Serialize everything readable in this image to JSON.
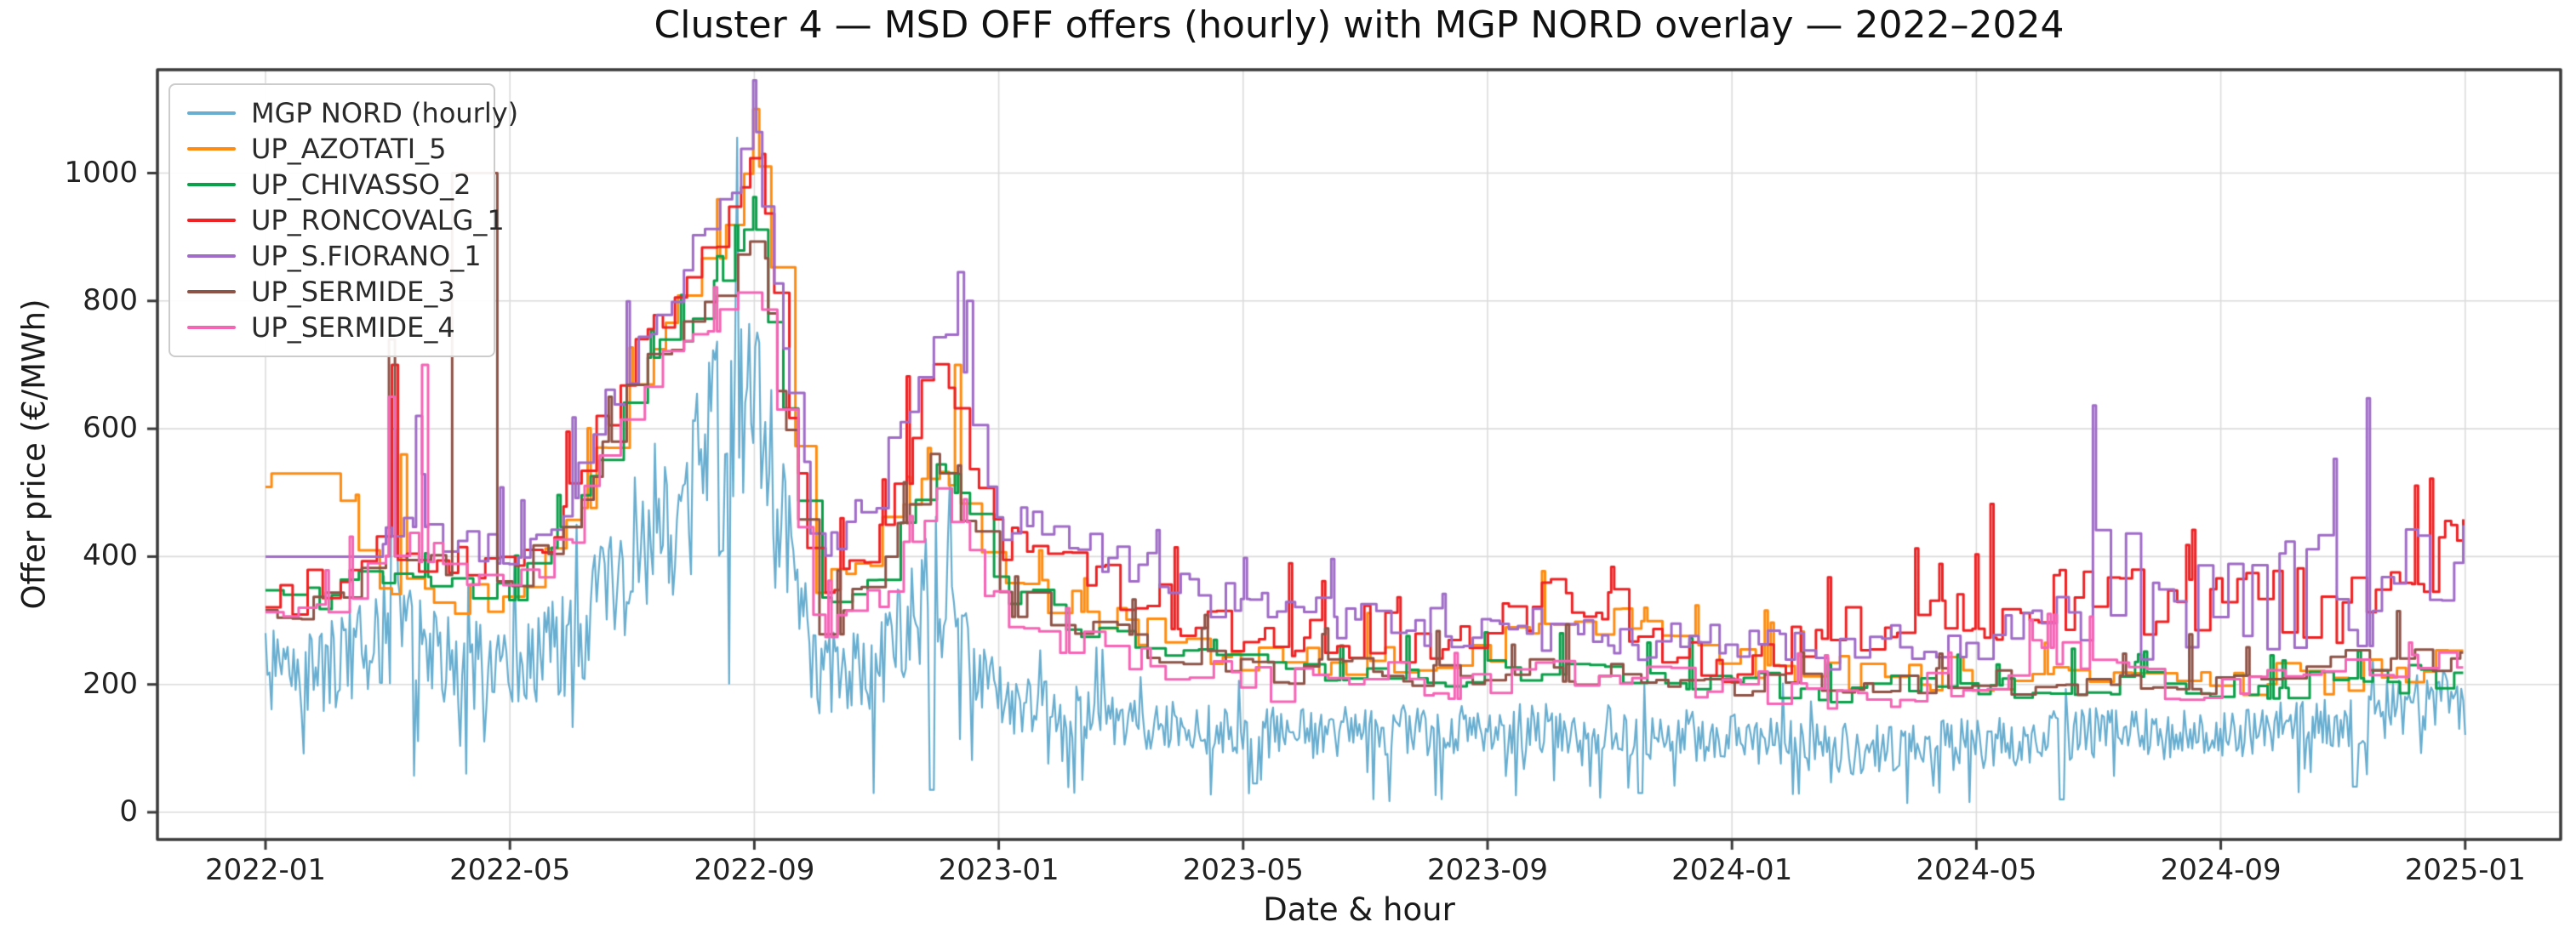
{
  "chart_data": {
    "type": "line",
    "title": "Cluster 4 — MSD OFF offers (hourly) with MGP NORD overlay — 2022–2024",
    "xlabel": "Date & hour",
    "ylabel": "Offer price (€/MWh)",
    "x_tick_labels": [
      "2022-01",
      "2022-05",
      "2022-09",
      "2023-01",
      "2023-05",
      "2023-09",
      "2024-01",
      "2024-05",
      "2024-09",
      "2025-01"
    ],
    "x_tick_months": [
      0,
      4,
      8,
      12,
      16,
      20,
      24,
      28,
      32,
      36
    ],
    "y_ticks": [
      0,
      200,
      400,
      600,
      800,
      1000
    ],
    "ylim": [
      -30,
      1170
    ],
    "grid": true,
    "legend_position": "upper left",
    "grid_color": "#dcdcdc",
    "spine_color": "#3a3a3a",
    "months": [
      "2022-01",
      "2022-02",
      "2022-03",
      "2022-04",
      "2022-05",
      "2022-06",
      "2022-07",
      "2022-08",
      "2022-09",
      "2022-10",
      "2022-11",
      "2022-12",
      "2023-01",
      "2023-02",
      "2023-03",
      "2023-04",
      "2023-05",
      "2023-06",
      "2023-07",
      "2023-08",
      "2023-09",
      "2023-10",
      "2023-11",
      "2023-12",
      "2024-01",
      "2024-02",
      "2024-03",
      "2024-04",
      "2024-05",
      "2024-06",
      "2024-07",
      "2024-08",
      "2024-09",
      "2024-10",
      "2024-11",
      "2024-12",
      "2025-01"
    ],
    "series": [
      {
        "name": "MGP NORD (hourly)",
        "color": "#68aed0",
        "monthly_median": [
          230,
          240,
          310,
          250,
          240,
          280,
          420,
          560,
          680,
          230,
          240,
          380,
          190,
          165,
          150,
          140,
          135,
          130,
          140,
          135,
          140,
          140,
          135,
          130,
          125,
          115,
          105,
          110,
          115,
          125,
          135,
          130,
          130,
          140,
          155,
          175,
          185
        ],
        "render": {
          "kind": "hourly",
          "amp_rel": 0.32,
          "amp_min": 45,
          "step_days": 1,
          "dip_prob": 0.05,
          "spike_prob": 0.015,
          "dips": [
            {
              "m": 10.9,
              "v": 35
            },
            {
              "m": 16.2,
              "v": 45
            },
            {
              "m": 22.5,
              "v": 30
            },
            {
              "m": 29.4,
              "v": 20
            },
            {
              "m": 34.2,
              "v": 40
            }
          ],
          "spikes": [
            {
              "m": 2.1,
              "v": 600
            }
          ]
        }
      },
      {
        "name": "UP_AZOTATI_5",
        "color": "#ff8c10",
        "monthly_median": [
          530,
          480,
          360,
          340,
          335,
          460,
          660,
          820,
          1040,
          360,
          420,
          540,
          380,
          330,
          300,
          255,
          235,
          230,
          240,
          230,
          255,
          320,
          300,
          250,
          235,
          225,
          215,
          220,
          210,
          215,
          212,
          205,
          200,
          205,
          212,
          222,
          230
        ],
        "render": {
          "kind": "step",
          "amp": 30,
          "flat": [
            [
              0.05,
              1.2,
              530
            ]
          ],
          "spikes": [
            {
              "m": 8.0,
              "v": 1100
            },
            {
              "m": 11.3,
              "v": 700
            },
            {
              "m": 2.25,
              "v": 560
            }
          ]
        }
      },
      {
        "name": "UP_CHIVASSO_2",
        "color": "#0ba04a",
        "monthly_median": [
          330,
          340,
          370,
          345,
          340,
          460,
          690,
          770,
          930,
          310,
          360,
          560,
          355,
          305,
          280,
          245,
          225,
          215,
          222,
          212,
          222,
          232,
          222,
          212,
          205,
          198,
          192,
          196,
          192,
          198,
          202,
          196,
          192,
          194,
          202,
          208,
          212
        ],
        "render": {
          "kind": "step",
          "amp": 22,
          "spikes": [
            {
              "m": 7.4,
              "v": 870
            }
          ]
        }
      },
      {
        "name": "UP_RONCOVALG_1",
        "color": "#ee2224",
        "monthly_median": [
          330,
          345,
          430,
          400,
          390,
          490,
          710,
          820,
          1010,
          310,
          410,
          720,
          430,
          385,
          350,
          305,
          285,
          265,
          285,
          265,
          285,
          340,
          325,
          265,
          235,
          255,
          285,
          305,
          315,
          345,
          335,
          325,
          335,
          335,
          305,
          390,
          410
        ],
        "render": {
          "kind": "step",
          "amp": 40,
          "amp_late": 55,
          "late_from": 28,
          "hold_min": 2,
          "hold_rng": 6,
          "spikes": [
            {
              "m": 2.1,
              "v": 700
            },
            {
              "m": 35.6,
              "v": 430
            },
            {
              "m": 35.9,
              "v": 425
            }
          ]
        }
      },
      {
        "name": "UP_S.FIORANO_1",
        "color": "#a06cc8",
        "monthly_median": [
          400,
          400,
          460,
          425,
          405,
          510,
          720,
          870,
          1060,
          400,
          500,
          760,
          455,
          425,
          400,
          350,
          325,
          305,
          305,
          285,
          295,
          285,
          275,
          265,
          272,
          262,
          252,
          262,
          272,
          325,
          345,
          335,
          345,
          355,
          345,
          365,
          355
        ],
        "render": {
          "kind": "step",
          "amp": 35,
          "amp_late": 100,
          "late_from": 29.5,
          "hold_min": 2,
          "hold_rng": 5,
          "flat": [
            [
              0.0,
              1.9,
              400
            ]
          ],
          "spikes": [
            {
              "m": 2.5,
              "v": 620
            },
            {
              "m": 11.35,
              "v": 845
            },
            {
              "m": 11.5,
              "v": 800
            }
          ]
        }
      },
      {
        "name": "UP_SERMIDE_3",
        "color": "#8e5347",
        "monthly_median": [
          315,
          325,
          410,
          385,
          355,
          465,
          690,
          770,
          910,
          290,
          360,
          560,
          335,
          305,
          275,
          245,
          225,
          215,
          222,
          217,
          222,
          227,
          217,
          212,
          207,
          202,
          197,
          202,
          202,
          207,
          207,
          202,
          212,
          222,
          232,
          242,
          245
        ],
        "render": {
          "kind": "step",
          "amp": 25,
          "flat": [
            [
              3.05,
              3.78,
              1000
            ]
          ],
          "spikes": [
            {
              "m": 2.05,
              "v": 740
            }
          ]
        }
      },
      {
        "name": "UP_SERMIDE_4",
        "color": "#f565b5",
        "monthly_median": [
          305,
          315,
          430,
          385,
          335,
          440,
          660,
          730,
          860,
          270,
          330,
          490,
          305,
          275,
          252,
          222,
          202,
          197,
          212,
          202,
          212,
          222,
          212,
          202,
          197,
          192,
          187,
          192,
          197,
          252,
          232,
          202,
          202,
          212,
          232,
          222,
          228
        ],
        "render": {
          "kind": "step",
          "amp": 28,
          "spikes": [
            {
              "m": 2.05,
              "v": 650
            },
            {
              "m": 2.6,
              "v": 700
            }
          ]
        }
      }
    ]
  }
}
